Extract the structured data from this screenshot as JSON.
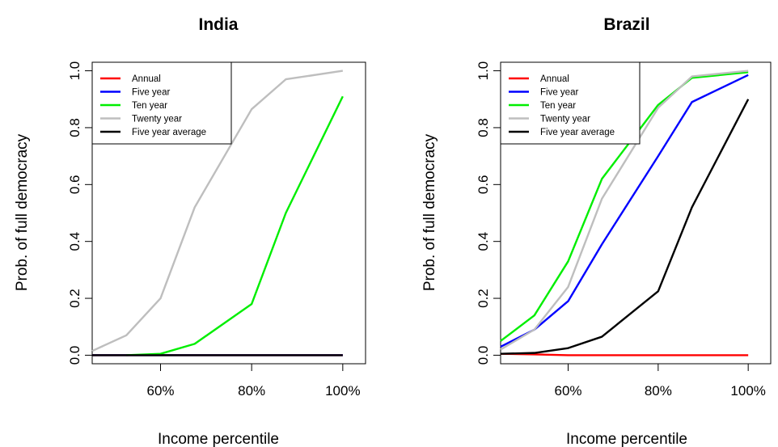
{
  "chart_data": [
    {
      "type": "line",
      "title": "India",
      "xlabel": "Income percentile",
      "ylabel": "Prob. of full democracy",
      "xlim": [
        45,
        105
      ],
      "ylim": [
        -0.03,
        1.03
      ],
      "xticks": [
        60,
        80,
        100
      ],
      "xtick_labels": [
        "60%",
        "80%",
        "100%"
      ],
      "yticks": [
        0,
        0.2,
        0.4,
        0.6,
        0.8,
        1
      ],
      "ytick_labels": [
        "0.0",
        "0.2",
        "0.4",
        "0.6",
        "0.8",
        "1.0"
      ],
      "legend_position": "top-left",
      "series": [
        {
          "name": "Annual",
          "color": "#ff0000",
          "x": [
            45,
            52.5,
            60,
            67.5,
            80,
            87.5,
            100
          ],
          "y": [
            0,
            0,
            0,
            0,
            0,
            0,
            0
          ]
        },
        {
          "name": "Five year",
          "color": "#0000ff",
          "x": [
            45,
            52.5,
            60,
            67.5,
            80,
            87.5,
            100
          ],
          "y": [
            0,
            0,
            0,
            0,
            0,
            0,
            0
          ]
        },
        {
          "name": "Ten year",
          "color": "#00ee00",
          "x": [
            52.5,
            60,
            67.5,
            80,
            87.5,
            100
          ],
          "y": [
            0,
            0.005,
            0.04,
            0.18,
            0.5,
            0.91
          ]
        },
        {
          "name": "Twenty year",
          "color": "#bebebe",
          "x": [
            45,
            52.5,
            60,
            67.5,
            80,
            87.5,
            100
          ],
          "y": [
            0.015,
            0.07,
            0.2,
            0.52,
            0.865,
            0.97,
            1.0
          ]
        },
        {
          "name": "Five year average",
          "color": "#000000",
          "x": [
            45,
            52.5,
            60,
            67.5,
            80,
            87.5,
            100
          ],
          "y": [
            0,
            0,
            0,
            0,
            0,
            0,
            0
          ]
        }
      ]
    },
    {
      "type": "line",
      "title": "Brazil",
      "xlabel": "Income percentile",
      "ylabel": "Prob. of full democracy",
      "xlim": [
        45,
        105
      ],
      "ylim": [
        -0.03,
        1.03
      ],
      "xticks": [
        60,
        80,
        100
      ],
      "xtick_labels": [
        "60%",
        "80%",
        "100%"
      ],
      "yticks": [
        0,
        0.2,
        0.4,
        0.6,
        0.8,
        1
      ],
      "ytick_labels": [
        "0.0",
        "0.2",
        "0.4",
        "0.6",
        "0.8",
        "1.0"
      ],
      "legend_position": "top-left",
      "series": [
        {
          "name": "Annual",
          "color": "#ff0000",
          "x": [
            45,
            52.5,
            60,
            67.5,
            80,
            87.5,
            100
          ],
          "y": [
            0.005,
            0.003,
            0,
            0,
            0,
            0,
            0
          ]
        },
        {
          "name": "Five year",
          "color": "#0000ff",
          "x": [
            45,
            52.5,
            60,
            67.5,
            80,
            87.5,
            100
          ],
          "y": [
            0.03,
            0.09,
            0.19,
            0.39,
            0.7,
            0.89,
            0.985
          ]
        },
        {
          "name": "Ten year",
          "color": "#00ee00",
          "x": [
            45,
            52.5,
            60,
            67.5,
            80,
            87.5,
            100
          ],
          "y": [
            0.05,
            0.14,
            0.33,
            0.62,
            0.88,
            0.975,
            0.995
          ]
        },
        {
          "name": "Twenty year",
          "color": "#bebebe",
          "x": [
            45,
            52.5,
            60,
            67.5,
            80,
            87.5,
            100
          ],
          "y": [
            0.02,
            0.09,
            0.24,
            0.55,
            0.87,
            0.98,
            1.0
          ]
        },
        {
          "name": "Five year average",
          "color": "#000000",
          "x": [
            45,
            52.5,
            60,
            67.5,
            80,
            87.5,
            100
          ],
          "y": [
            0.005,
            0.008,
            0.025,
            0.065,
            0.225,
            0.52,
            0.9
          ]
        }
      ]
    }
  ]
}
